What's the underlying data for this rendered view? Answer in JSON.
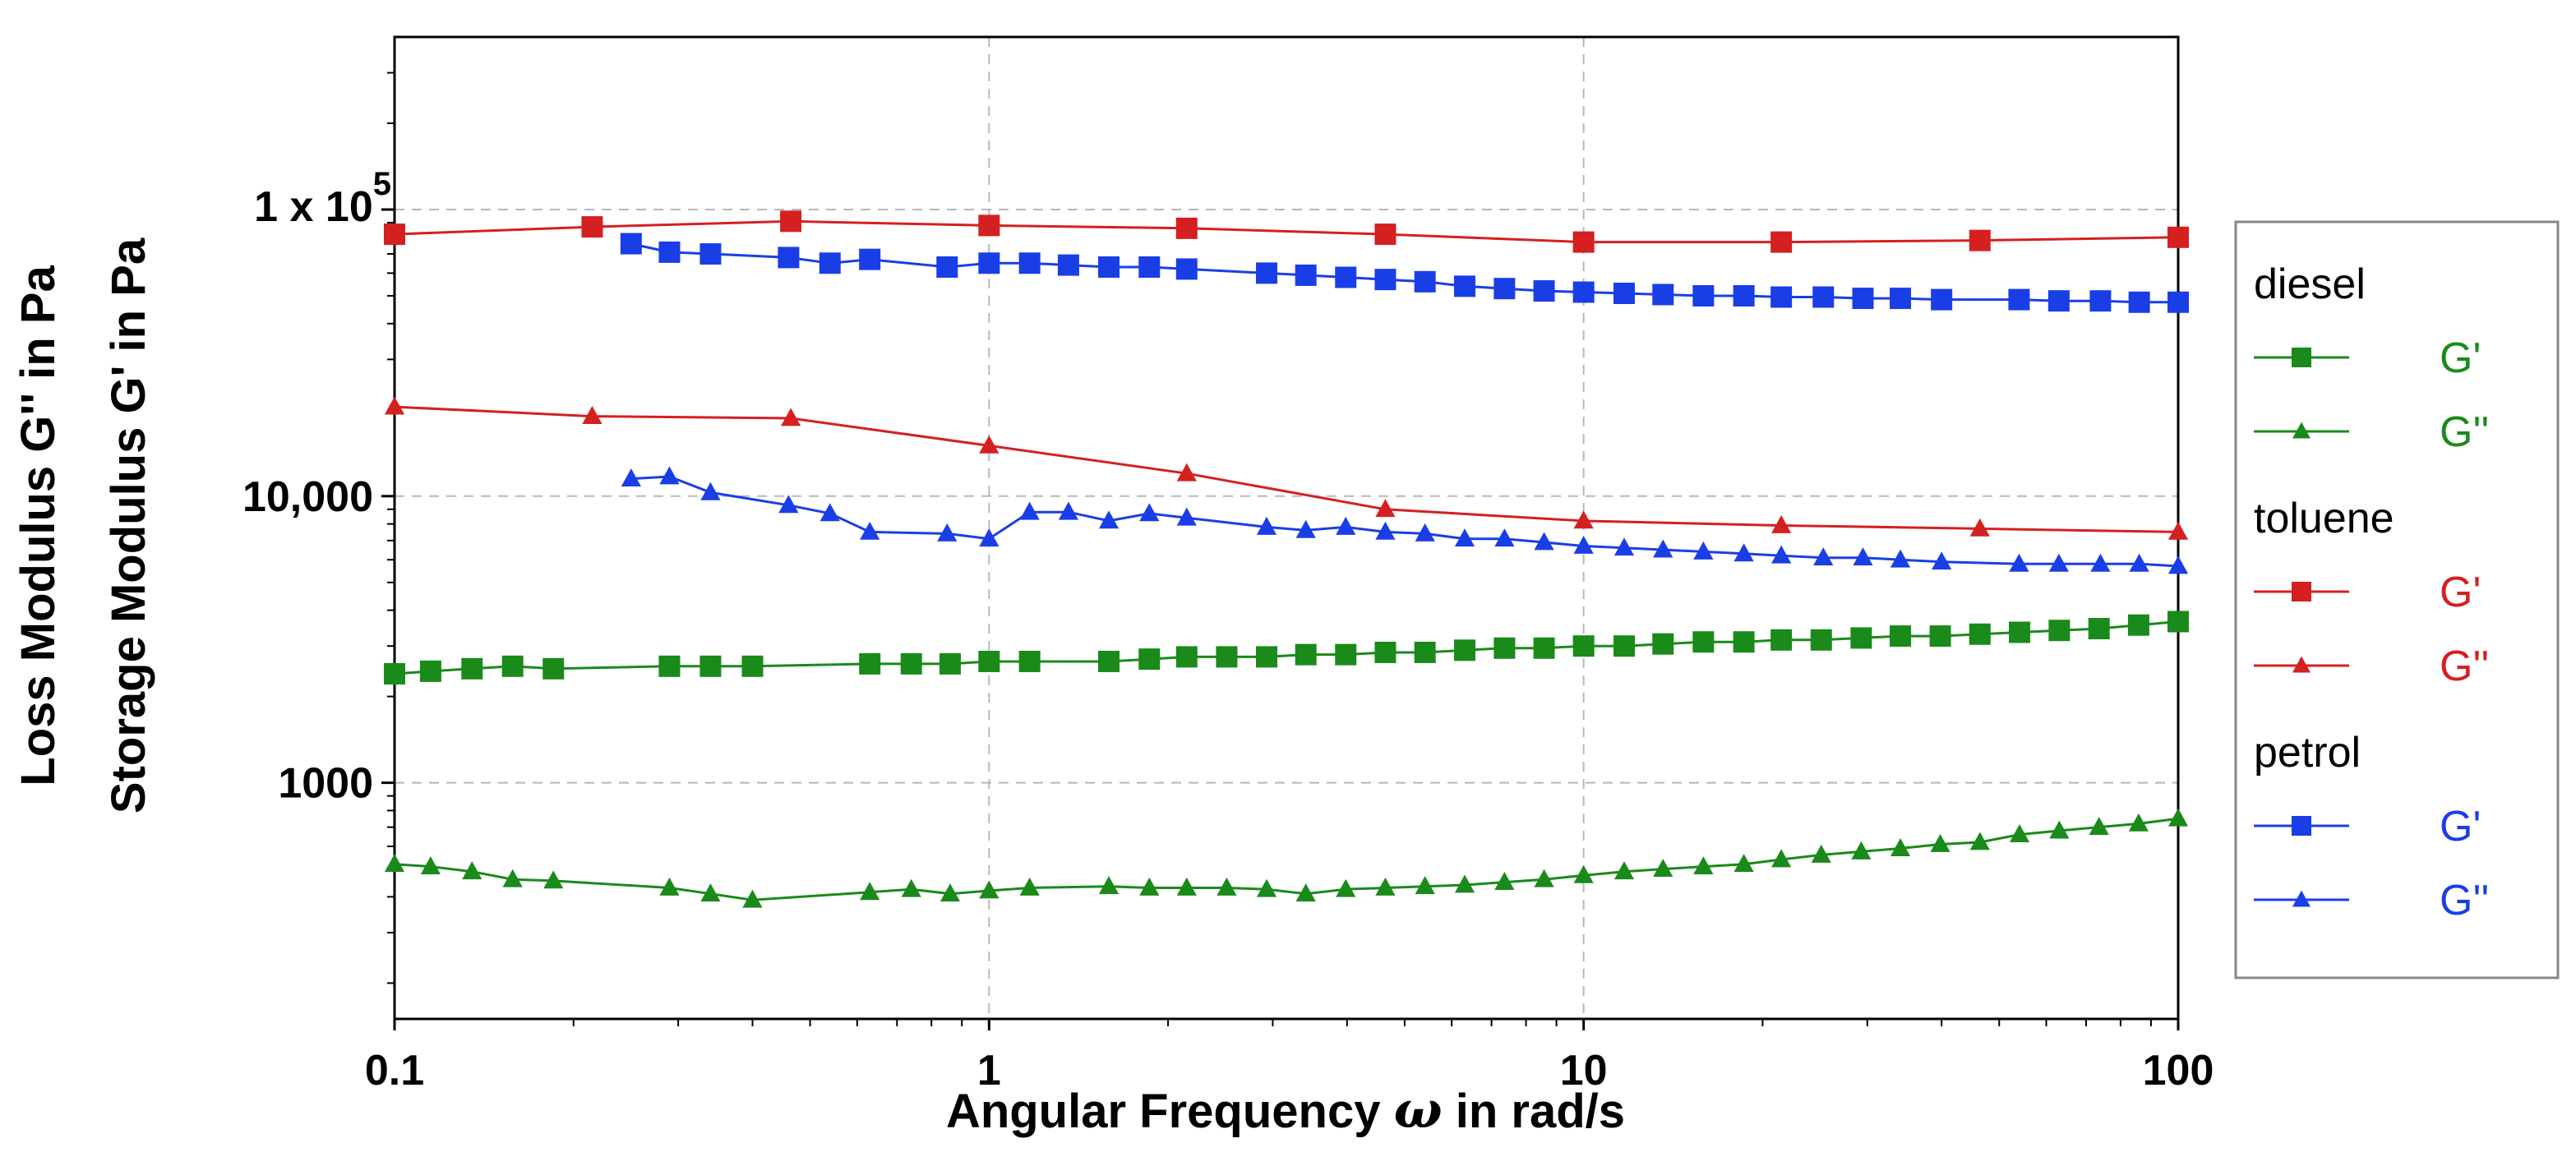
{
  "chart_data": {
    "type": "line",
    "xscale": "log",
    "yscale": "log",
    "xlabel_pre": "Angular Frequency ",
    "xlabel_symbol": "ω",
    "xlabel_post": " in rad/s",
    "ylabel_lines": [
      "Loss Modulus G'' in Pa",
      "Storage Modulus G' in Pa"
    ],
    "xlim": [
      0.1,
      100
    ],
    "ylim": [
      150,
      400000
    ],
    "grid": true,
    "legend_placement": "right",
    "x_ticks": [
      {
        "value": 0.1,
        "label": "0.1"
      },
      {
        "value": 1,
        "label": "1"
      },
      {
        "value": 10,
        "label": "10"
      },
      {
        "value": 100,
        "label": "100"
      }
    ],
    "y_ticks": [
      {
        "value": 1000,
        "label": "1000"
      },
      {
        "value": 10000,
        "label": "10,000"
      },
      {
        "value": 100000,
        "label": "1 x 10",
        "exponent": "5"
      }
    ],
    "legend": [
      {
        "group": "diesel",
        "entries": [
          {
            "series": "diesel_G1",
            "label": "G'",
            "marker": "square",
            "color": "#1a8a1a"
          },
          {
            "series": "diesel_G2",
            "label": "G''",
            "marker": "triangle",
            "color": "#1a8a1a"
          }
        ]
      },
      {
        "group": "toluene",
        "entries": [
          {
            "series": "toluene_G1",
            "label": "G'",
            "marker": "square",
            "color": "#d42020"
          },
          {
            "series": "toluene_G2",
            "label": "G''",
            "marker": "triangle",
            "color": "#d42020"
          }
        ]
      },
      {
        "group": "petrol",
        "entries": [
          {
            "series": "petrol_G1",
            "label": "G'",
            "marker": "square",
            "color": "#1a3ee6"
          },
          {
            "series": "petrol_G2",
            "label": "G''",
            "marker": "triangle",
            "color": "#1a3ee6"
          }
        ]
      }
    ],
    "series": [
      {
        "id": "toluene_G1",
        "name": "toluene G'",
        "color": "#d42020",
        "marker": "square",
        "x": [
          0.1,
          0.215,
          0.464,
          1,
          2.15,
          4.64,
          10,
          21.5,
          46.4,
          100
        ],
        "y": [
          82000,
          87000,
          91000,
          88000,
          86000,
          82000,
          77000,
          77000,
          78000,
          80000
        ]
      },
      {
        "id": "petrol_G1",
        "name": "petrol G'",
        "color": "#1a3ee6",
        "marker": "square",
        "x": [
          0.25,
          0.29,
          0.34,
          0.46,
          0.54,
          0.63,
          0.85,
          1,
          1.17,
          1.36,
          1.59,
          1.86,
          2.15,
          2.93,
          3.41,
          3.98,
          4.64,
          5.41,
          6.31,
          7.36,
          8.58,
          10,
          11.7,
          13.6,
          15.9,
          18.6,
          21.5,
          25.3,
          29.5,
          34.1,
          40,
          54,
          63,
          74,
          86,
          100
        ],
        "y": [
          76000,
          71000,
          70000,
          68000,
          65000,
          67000,
          63000,
          65000,
          65000,
          64000,
          63000,
          63000,
          62000,
          60000,
          59000,
          58000,
          57000,
          56000,
          54000,
          53000,
          52000,
          51500,
          51000,
          50500,
          50000,
          50000,
          49500,
          49500,
          49000,
          49000,
          48500,
          48500,
          48000,
          48000,
          47500,
          47500
        ]
      },
      {
        "id": "toluene_G2",
        "name": "toluene G''",
        "color": "#d42020",
        "marker": "triangle",
        "x": [
          0.1,
          0.215,
          0.464,
          1,
          2.15,
          4.64,
          10,
          21.5,
          46.4,
          100
        ],
        "y": [
          20500,
          19000,
          18700,
          15000,
          12000,
          9000,
          8200,
          7900,
          7700,
          7500
        ]
      },
      {
        "id": "petrol_G2",
        "name": "petrol G''",
        "color": "#1a3ee6",
        "marker": "triangle",
        "x": [
          0.25,
          0.29,
          0.34,
          0.46,
          0.54,
          0.63,
          0.85,
          1,
          1.17,
          1.36,
          1.59,
          1.86,
          2.15,
          2.93,
          3.41,
          3.98,
          4.64,
          5.41,
          6.31,
          7.36,
          8.58,
          10,
          11.7,
          13.6,
          15.9,
          18.6,
          21.5,
          25.3,
          29.5,
          34.1,
          40,
          54,
          63,
          74,
          86,
          100
        ],
        "y": [
          11500,
          11700,
          10300,
          9300,
          8700,
          7500,
          7400,
          7100,
          8800,
          8800,
          8200,
          8700,
          8400,
          7800,
          7600,
          7800,
          7500,
          7400,
          7100,
          7100,
          6900,
          6700,
          6600,
          6500,
          6400,
          6300,
          6200,
          6100,
          6100,
          6000,
          5900,
          5800,
          5800,
          5800,
          5800,
          5700
        ]
      },
      {
        "id": "diesel_G1",
        "name": "diesel G'",
        "color": "#1a8a1a",
        "marker": "square",
        "x": [
          0.1,
          0.115,
          0.135,
          0.158,
          0.185,
          0.29,
          0.34,
          0.4,
          0.63,
          0.74,
          0.86,
          1,
          1.17,
          1.59,
          1.86,
          2.15,
          2.51,
          2.93,
          3.41,
          3.98,
          4.64,
          5.41,
          6.31,
          7.36,
          8.58,
          10,
          11.7,
          13.6,
          15.9,
          18.6,
          21.5,
          25.1,
          29.3,
          34.1,
          39.8,
          46.4,
          54.1,
          63.1,
          73.6,
          85.8,
          100
        ],
        "y": [
          2400,
          2450,
          2500,
          2550,
          2500,
          2550,
          2550,
          2550,
          2600,
          2600,
          2600,
          2650,
          2650,
          2650,
          2700,
          2750,
          2750,
          2750,
          2800,
          2800,
          2850,
          2850,
          2900,
          2950,
          2950,
          3000,
          3000,
          3050,
          3100,
          3100,
          3150,
          3150,
          3200,
          3250,
          3250,
          3300,
          3350,
          3400,
          3450,
          3550,
          3650
        ]
      },
      {
        "id": "diesel_G2",
        "name": "diesel G''",
        "color": "#1a8a1a",
        "marker": "triangle",
        "x": [
          0.1,
          0.115,
          0.135,
          0.158,
          0.185,
          0.29,
          0.34,
          0.4,
          0.63,
          0.74,
          0.86,
          1,
          1.17,
          1.59,
          1.86,
          2.15,
          2.51,
          2.93,
          3.41,
          3.98,
          4.64,
          5.41,
          6.31,
          7.36,
          8.58,
          10,
          11.7,
          13.6,
          15.9,
          18.6,
          21.5,
          25.1,
          29.3,
          34.1,
          39.8,
          46.4,
          54.1,
          63.1,
          73.6,
          85.8,
          100
        ],
        "y": [
          520,
          510,
          490,
          460,
          455,
          430,
          410,
          390,
          415,
          425,
          410,
          420,
          430,
          435,
          430,
          430,
          430,
          425,
          410,
          425,
          430,
          435,
          440,
          450,
          460,
          475,
          490,
          500,
          510,
          520,
          540,
          560,
          575,
          590,
          610,
          620,
          660,
          680,
          700,
          720,
          750
        ]
      }
    ]
  }
}
